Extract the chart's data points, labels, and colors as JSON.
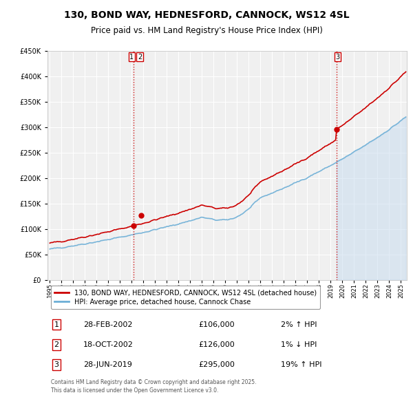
{
  "title": "130, BOND WAY, HEDNESFORD, CANNOCK, WS12 4SL",
  "subtitle": "Price paid vs. HM Land Registry's House Price Index (HPI)",
  "title_fontsize": 10,
  "subtitle_fontsize": 8.5,
  "background_color": "#ffffff",
  "plot_bg_color": "#f0f0f0",
  "grid_color": "#ffffff",
  "ylim": [
    0,
    450000
  ],
  "yticks": [
    0,
    50000,
    100000,
    150000,
    200000,
    250000,
    300000,
    350000,
    400000,
    450000
  ],
  "xlim_start": 1994.8,
  "xlim_end": 2025.5,
  "xticks": [
    1995,
    1996,
    1997,
    1998,
    1999,
    2000,
    2001,
    2002,
    2003,
    2004,
    2005,
    2006,
    2007,
    2008,
    2009,
    2010,
    2011,
    2012,
    2013,
    2014,
    2015,
    2016,
    2017,
    2018,
    2019,
    2020,
    2021,
    2022,
    2023,
    2024,
    2025
  ],
  "hpi_line_color": "#6baed6",
  "hpi_fill_color": "#c6dbef",
  "price_line_color": "#cc0000",
  "sale_marker_color": "#cc0000",
  "vline_color": "#cc0000",
  "legend_label_price": "130, BOND WAY, HEDNESFORD, CANNOCK, WS12 4SL (detached house)",
  "legend_label_hpi": "HPI: Average price, detached house, Cannock Chase",
  "transaction1_x": 2002.15,
  "transaction1_y": 106000,
  "transaction2_x": 2002.8,
  "transaction2_y": 126000,
  "transaction3_x": 2019.49,
  "transaction3_y": 295000,
  "table_rows": [
    {
      "num": "1",
      "date": "28-FEB-2002",
      "price": "£106,000",
      "change": "2% ↑ HPI"
    },
    {
      "num": "2",
      "date": "18-OCT-2002",
      "price": "£126,000",
      "change": "1% ↓ HPI"
    },
    {
      "num": "3",
      "date": "28-JUN-2019",
      "price": "£295,000",
      "change": "19% ↑ HPI"
    }
  ],
  "footnote": "Contains HM Land Registry data © Crown copyright and database right 2025.\nThis data is licensed under the Open Government Licence v3.0."
}
